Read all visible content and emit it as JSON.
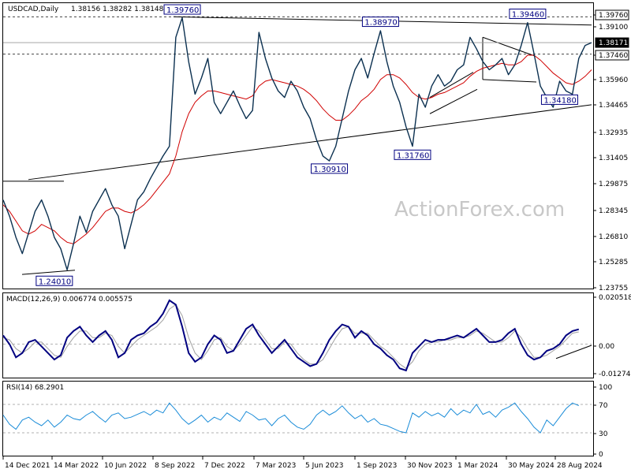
{
  "header": {
    "symbol": "USDCAD,Daily",
    "ohlc": "1.38156 1.38282 1.38148 1.38171"
  },
  "watermark": "ActionForex.com",
  "colors": {
    "price": "#0b3050",
    "moving_average": "#d00000",
    "macd_line": "#000080",
    "signal_line": "#a0a0a0",
    "rsi_line": "#1a8cd8",
    "trendline": "#000000",
    "label_border": "#000080"
  },
  "chart_data": [
    {
      "type": "line",
      "pane": "price",
      "ylim": [
        1.2315,
        1.405
      ],
      "y_ticks": [
        "1.39760",
        "1.39100",
        "1.37460",
        "1.35960",
        "1.34465",
        "1.32935",
        "1.31405",
        "1.29875",
        "1.28345",
        "1.26810",
        "1.25285",
        "1.23755"
      ],
      "current_price": "1.38171",
      "x_ticks": [
        "14 Dec 2021",
        "14 Mar 2022",
        "10 Jun 2022",
        "8 Sep 2022",
        "7 Dec 2022",
        "7 Mar 2023",
        "5 Jun 2023",
        "1 Sep 2023",
        "30 Nov 2023",
        "1 Mar 2024",
        "30 May 2024",
        "28 Aug 2024"
      ],
      "series": [
        {
          "values": [
            1.285,
            1.275,
            1.262,
            1.252,
            1.265,
            1.278,
            1.285,
            1.275,
            1.262,
            1.255,
            1.242,
            1.258,
            1.275,
            1.265,
            1.278,
            1.285,
            1.292,
            1.282,
            1.275,
            1.255,
            1.27,
            1.285,
            1.29,
            1.298,
            1.305,
            1.312,
            1.318,
            1.385,
            1.397,
            1.37,
            1.35,
            1.36,
            1.372,
            1.345,
            1.338,
            1.345,
            1.352,
            1.343,
            1.335,
            1.34,
            1.388,
            1.372,
            1.36,
            1.352,
            1.348,
            1.358,
            1.352,
            1.342,
            1.335,
            1.322,
            1.312,
            1.309,
            1.318,
            1.335,
            1.352,
            1.365,
            1.372,
            1.36,
            1.375,
            1.389,
            1.37,
            1.355,
            1.345,
            1.33,
            1.318,
            1.35,
            1.342,
            1.355,
            1.362,
            1.355,
            1.358,
            1.365,
            1.368,
            1.385,
            1.378,
            1.37,
            1.365,
            1.368,
            1.372,
            1.362,
            1.368,
            1.38,
            1.394,
            1.375,
            1.355,
            1.348,
            1.342,
            1.358,
            1.352,
            1.35,
            1.372,
            1.38,
            1.3817
          ]
        },
        {
          "values": [
            1.282,
            1.278,
            1.272,
            1.266,
            1.264,
            1.266,
            1.27,
            1.268,
            1.266,
            1.262,
            1.259,
            1.258,
            1.261,
            1.264,
            1.268,
            1.273,
            1.278,
            1.28,
            1.28,
            1.278,
            1.277,
            1.279,
            1.282,
            1.286,
            1.291,
            1.296,
            1.301,
            1.312,
            1.327,
            1.338,
            1.345,
            1.349,
            1.352,
            1.352,
            1.351,
            1.35,
            1.349,
            1.348,
            1.347,
            1.349,
            1.355,
            1.358,
            1.359,
            1.358,
            1.357,
            1.356,
            1.355,
            1.353,
            1.35,
            1.346,
            1.341,
            1.337,
            1.334,
            1.334,
            1.337,
            1.341,
            1.346,
            1.349,
            1.353,
            1.359,
            1.362,
            1.362,
            1.36,
            1.356,
            1.351,
            1.348,
            1.347,
            1.348,
            1.35,
            1.351,
            1.353,
            1.355,
            1.357,
            1.361,
            1.364,
            1.366,
            1.367,
            1.368,
            1.369,
            1.368,
            1.368,
            1.37,
            1.374,
            1.374,
            1.371,
            1.367,
            1.363,
            1.36,
            1.357,
            1.356,
            1.358,
            1.361,
            1.365
          ]
        }
      ],
      "annotations": [
        {
          "text": "1.24010",
          "x": 8,
          "y": 1.2401
        },
        {
          "text": "1.39760",
          "x": 28,
          "y": 1.3976
        },
        {
          "text": "1.30910",
          "x": 51,
          "y": 1.3091
        },
        {
          "text": "1.38970",
          "x": 59,
          "y": 1.3897
        },
        {
          "text": "1.31760",
          "x": 64,
          "y": 1.3176
        },
        {
          "text": "1.39460",
          "x": 82,
          "y": 1.3946
        },
        {
          "text": "1.34180",
          "x": 87,
          "y": 1.3418
        }
      ]
    },
    {
      "type": "line",
      "pane": "macd",
      "title": "MACD(12,26,9) 0.006774 0.005575",
      "ylim": [
        -0.0145,
        0.0225
      ],
      "y_ticks": [
        "0.020518",
        "0.00",
        "-0.012745"
      ],
      "current_value": "0.00",
      "series": [
        {
          "values": [
            0.004,
            0.0,
            -0.006,
            -0.004,
            0.001,
            0.002,
            -0.001,
            -0.004,
            -0.007,
            -0.005,
            0.003,
            0.006,
            0.008,
            0.004,
            0.001,
            0.004,
            0.006,
            0.002,
            -0.006,
            -0.004,
            0.002,
            0.004,
            0.005,
            0.008,
            0.01,
            0.014,
            0.02,
            0.018,
            0.008,
            -0.004,
            -0.008,
            -0.006,
            0.0,
            0.004,
            0.002,
            -0.004,
            -0.003,
            0.002,
            0.007,
            0.009,
            0.004,
            0.0,
            -0.004,
            -0.001,
            0.002,
            -0.002,
            -0.006,
            -0.008,
            -0.01,
            -0.009,
            -0.004,
            0.002,
            0.006,
            0.009,
            0.008,
            0.003,
            0.006,
            0.004,
            0.0,
            -0.002,
            -0.005,
            -0.007,
            -0.011,
            -0.012,
            -0.004,
            -0.001,
            0.002,
            0.001,
            0.002,
            0.002,
            0.003,
            0.004,
            0.003,
            0.005,
            0.007,
            0.004,
            0.001,
            0.001,
            0.002,
            0.005,
            0.007,
            0.0,
            -0.005,
            -0.007,
            -0.006,
            -0.003,
            -0.002,
            0.0,
            0.004,
            0.006,
            0.0068
          ]
        },
        {
          "values": [
            0.003,
            0.002,
            -0.002,
            -0.004,
            -0.002,
            0.001,
            0.001,
            -0.002,
            -0.005,
            -0.006,
            -0.001,
            0.003,
            0.006,
            0.006,
            0.003,
            0.003,
            0.005,
            0.004,
            -0.001,
            -0.004,
            -0.001,
            0.002,
            0.004,
            0.006,
            0.008,
            0.011,
            0.016,
            0.018,
            0.013,
            0.003,
            -0.004,
            -0.007,
            -0.003,
            0.002,
            0.003,
            -0.001,
            -0.003,
            0.0,
            0.004,
            0.008,
            0.006,
            0.002,
            -0.002,
            -0.002,
            0.001,
            0.0,
            -0.004,
            -0.007,
            -0.009,
            -0.009,
            -0.007,
            -0.002,
            0.003,
            0.007,
            0.008,
            0.005,
            0.005,
            0.005,
            0.002,
            -0.001,
            -0.003,
            -0.006,
            -0.009,
            -0.011,
            -0.008,
            -0.003,
            0.0,
            0.001,
            0.001,
            0.002,
            0.002,
            0.003,
            0.003,
            0.004,
            0.006,
            0.005,
            0.003,
            0.001,
            0.001,
            0.003,
            0.006,
            0.003,
            -0.002,
            -0.006,
            -0.006,
            -0.005,
            -0.003,
            -0.001,
            0.002,
            0.005,
            0.0056
          ]
        }
      ]
    },
    {
      "type": "line",
      "pane": "rsi",
      "title": "RSI(14) 68.2901",
      "ylim": [
        0,
        100
      ],
      "y_ticks": [
        "100",
        "70",
        "30",
        "0"
      ],
      "series": [
        {
          "values": [
            55,
            42,
            35,
            48,
            52,
            45,
            40,
            48,
            38,
            45,
            55,
            50,
            48,
            55,
            60,
            52,
            45,
            55,
            58,
            50,
            52,
            56,
            60,
            55,
            62,
            58,
            72,
            62,
            50,
            42,
            48,
            55,
            45,
            52,
            48,
            58,
            52,
            46,
            60,
            55,
            48,
            50,
            40,
            50,
            55,
            45,
            38,
            35,
            42,
            55,
            62,
            55,
            60,
            68,
            58,
            50,
            55,
            45,
            50,
            42,
            40,
            36,
            32,
            30,
            58,
            52,
            60,
            54,
            58,
            52,
            64,
            55,
            62,
            58,
            70,
            56,
            60,
            52,
            62,
            66,
            72,
            60,
            50,
            38,
            30,
            48,
            40,
            52,
            64,
            72,
            68.29
          ]
        }
      ]
    }
  ]
}
